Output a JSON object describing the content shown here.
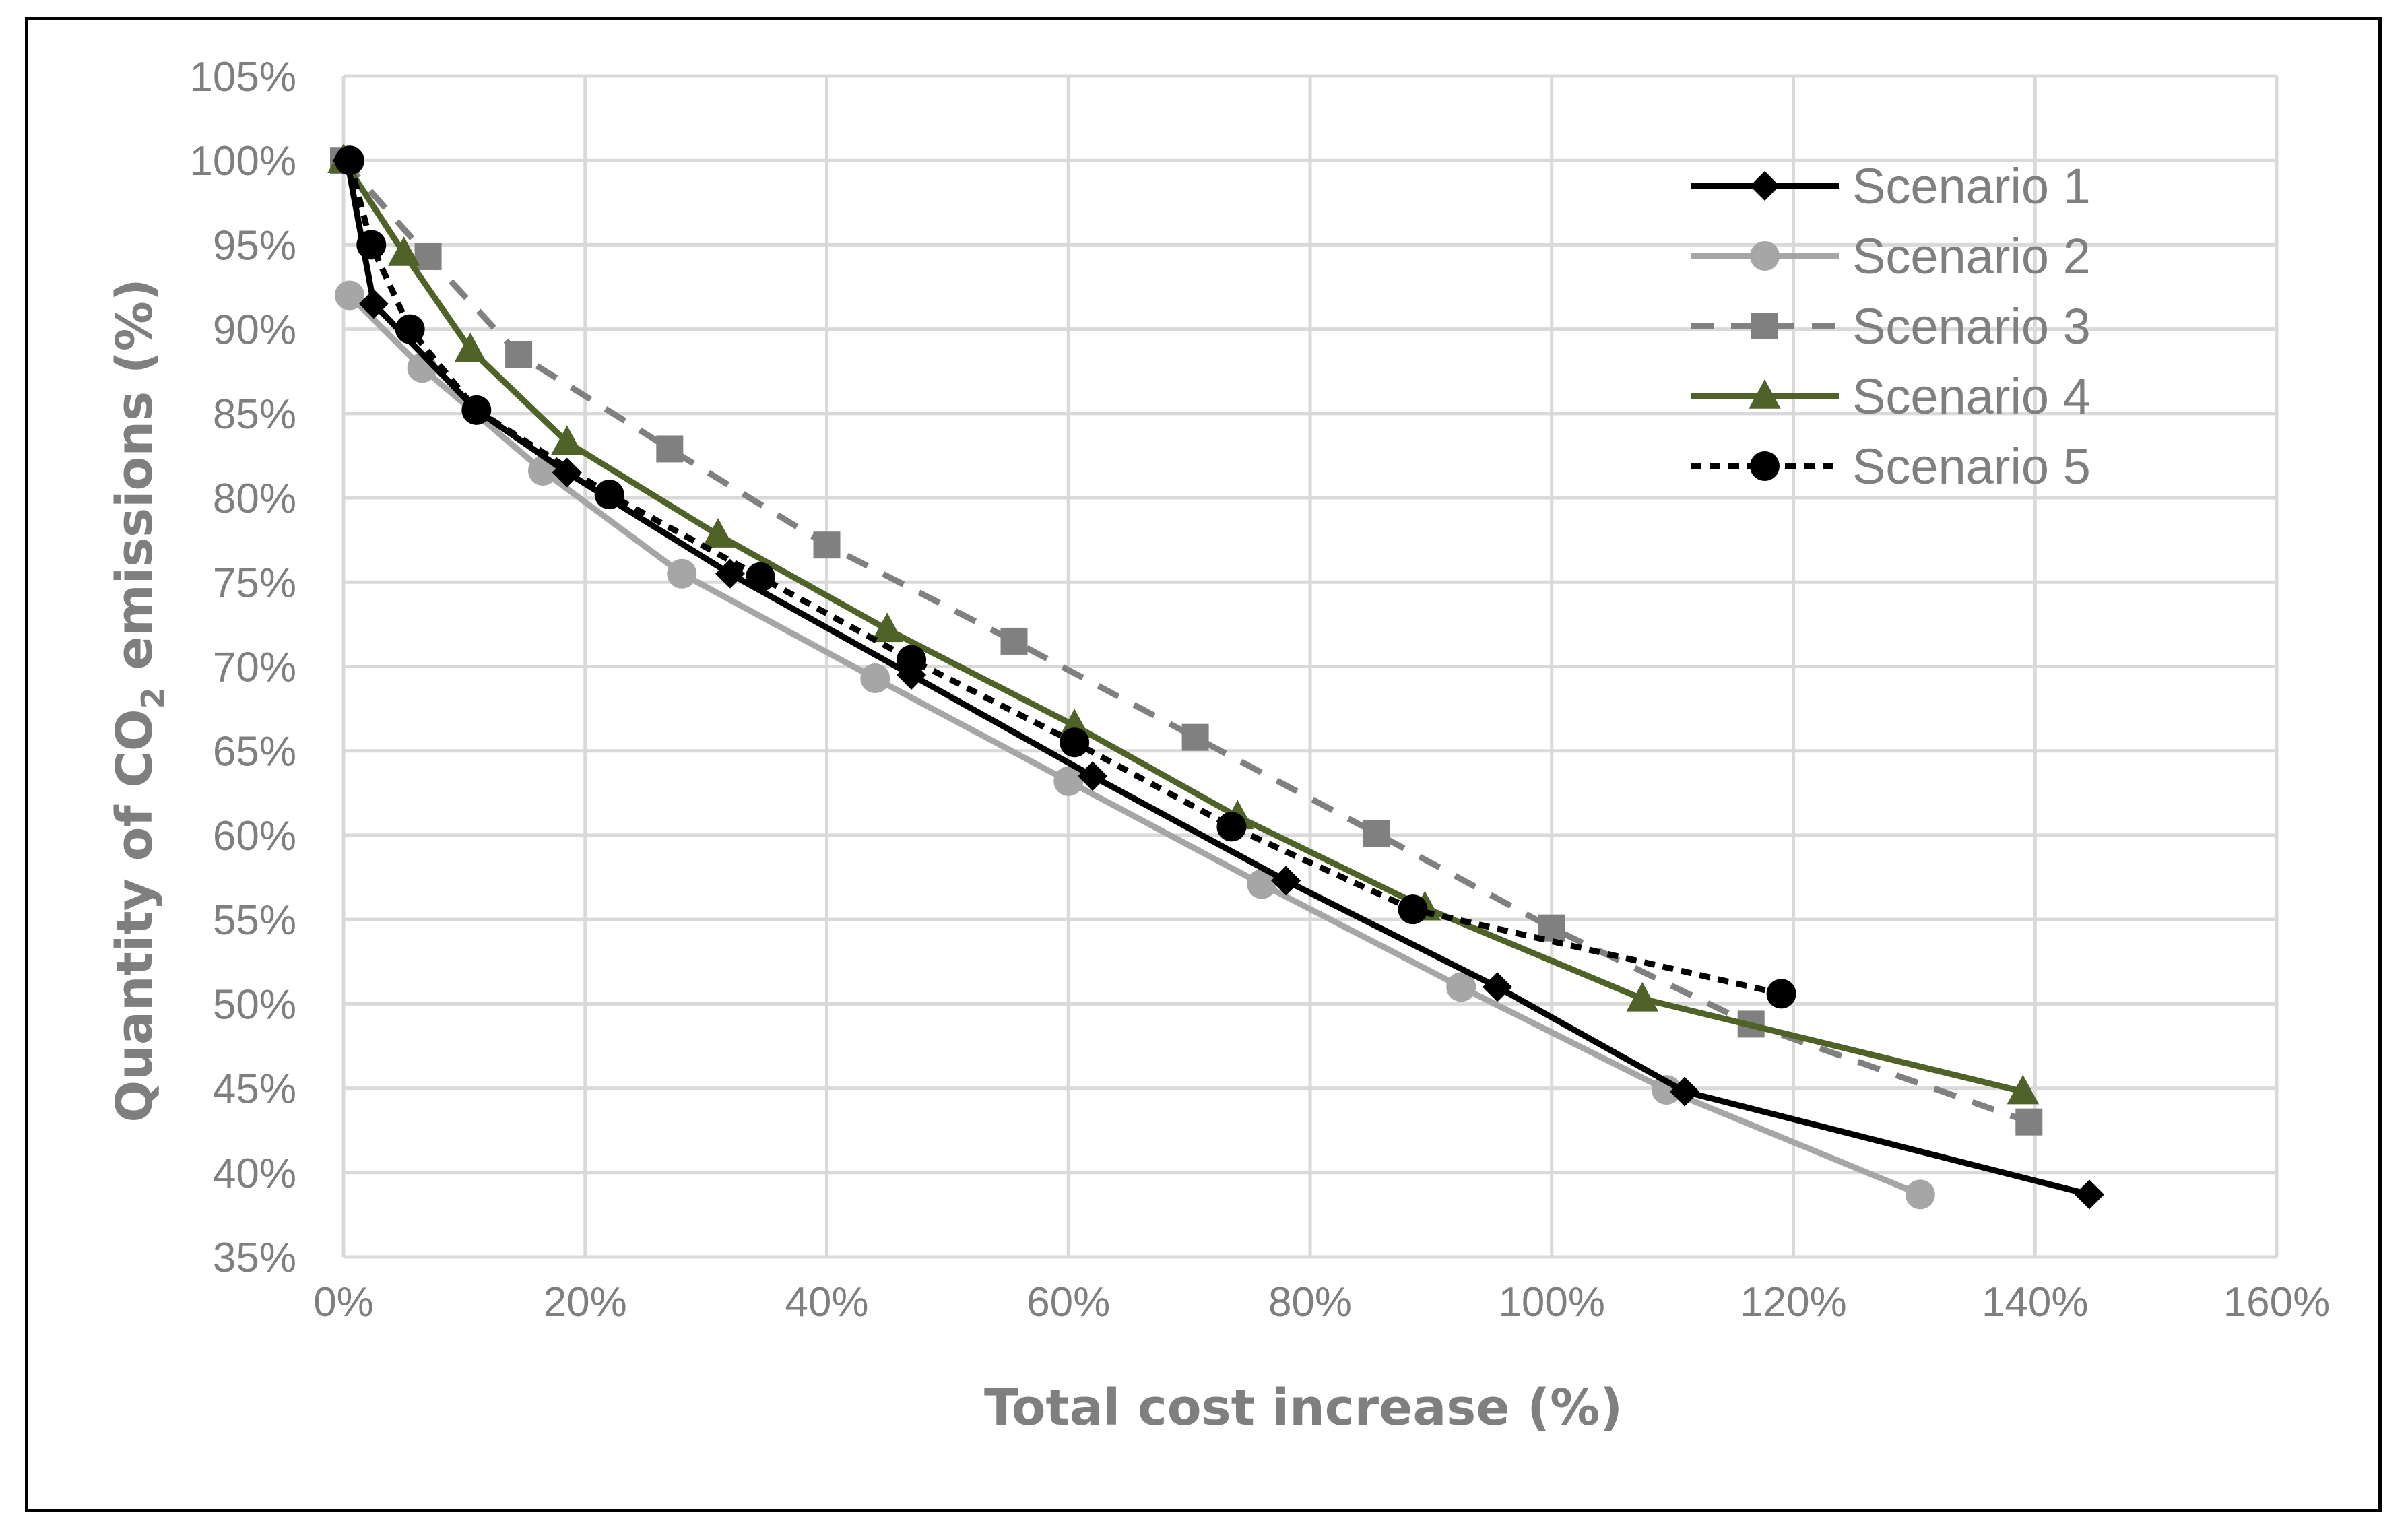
{
  "chart_data": {
    "type": "line",
    "title": "",
    "xlabel": "Total cost increase (%)",
    "ylabel_prefix": "Quantity of CO",
    "ylabel_subscript": "2",
    "ylabel_suffix": " emissions (%)",
    "xlim": [
      0,
      160
    ],
    "ylim": [
      35,
      105
    ],
    "xticks": [
      0,
      20,
      40,
      60,
      80,
      100,
      120,
      140,
      160
    ],
    "yticks": [
      35,
      40,
      45,
      50,
      55,
      60,
      65,
      70,
      75,
      80,
      85,
      90,
      95,
      100,
      105
    ],
    "xtick_labels": [
      "0%",
      "20%",
      "40%",
      "60%",
      "80%",
      "100%",
      "120%",
      "140%",
      "160%"
    ],
    "ytick_labels": [
      "35%",
      "40%",
      "45%",
      "50%",
      "55%",
      "60%",
      "65%",
      "70%",
      "75%",
      "80%",
      "85%",
      "90%",
      "95%",
      "100%",
      "105%"
    ],
    "grid": true,
    "legend_position": "top-right",
    "series": [
      {
        "name": "Scenario 1",
        "color": "#000000",
        "marker": "diamond",
        "dash": "solid",
        "x": [
          0.3,
          2.5,
          11,
          18.5,
          32,
          47,
          62,
          78,
          95.5,
          111,
          144.5
        ],
        "y": [
          100,
          91.5,
          85.2,
          81.5,
          75.5,
          69.5,
          63.5,
          57.3,
          51,
          44.8,
          38.7
        ]
      },
      {
        "name": "Scenario 2",
        "color": "#a6a6a6",
        "marker": "circle",
        "dash": "solid",
        "x": [
          0.5,
          6.5,
          16.5,
          28,
          44,
          60,
          76,
          92.5,
          109.5,
          130.5
        ],
        "y": [
          92,
          87.7,
          81.6,
          75.5,
          69.3,
          63.2,
          57.1,
          51,
          44.9,
          38.7
        ]
      },
      {
        "name": "Scenario 3",
        "color": "#808080",
        "marker": "square",
        "dash": "dashed",
        "x": [
          0,
          7,
          14.5,
          27,
          40,
          55.5,
          70.5,
          85.5,
          100,
          116.5,
          139.5
        ],
        "y": [
          100,
          94.3,
          88.5,
          82.9,
          77.2,
          71.5,
          65.8,
          60.1,
          54.5,
          48.8,
          43
        ]
      },
      {
        "name": "Scenario 4",
        "color": "#4f6228",
        "marker": "triangle",
        "dash": "solid",
        "x": [
          0,
          5,
          10.5,
          18.5,
          31,
          45,
          60.5,
          74,
          89.5,
          107.5,
          139
        ],
        "y": [
          100,
          94.5,
          88.8,
          83.3,
          77.8,
          72.2,
          66.5,
          61.1,
          55.7,
          50.3,
          44.8
        ]
      },
      {
        "name": "Scenario 5",
        "color": "#000000",
        "marker": "circle",
        "dash": "dotted",
        "x": [
          0.5,
          2.3,
          5.5,
          11,
          22,
          34.5,
          47,
          60.5,
          73.5,
          88.5,
          119
        ],
        "y": [
          100,
          95,
          90,
          85.2,
          80.2,
          75.3,
          70.4,
          65.5,
          60.5,
          55.6,
          50.6
        ]
      }
    ]
  }
}
